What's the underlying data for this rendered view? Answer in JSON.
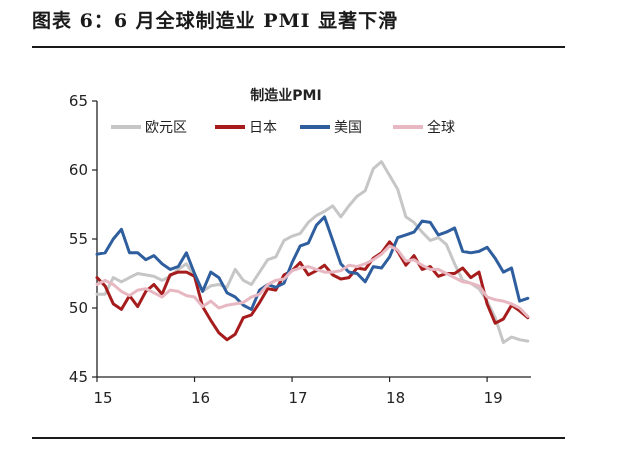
{
  "figure_title": "图表 6：6 月全球制造业 PMI 显著下滑",
  "chart_data": {
    "type": "line",
    "title": "制造业PMI",
    "xlabel": "",
    "ylabel": "",
    "x_ticks": [
      "15",
      "16",
      "17",
      "18",
      "19"
    ],
    "xlim": [
      2015.0,
      2019.45
    ],
    "ylim": [
      45,
      65
    ],
    "y_ticks": [
      45,
      50,
      55,
      60,
      65
    ],
    "grid": false,
    "legend": "top",
    "colors": {
      "欧元区": "#c6c6c6",
      "日本": "#a61c1c",
      "美国": "#2e5e9e",
      "全球": "#e7b8c2"
    },
    "series": [
      {
        "name": "欧元区",
        "x": [
          2015.0,
          2015.083,
          2015.167,
          2015.25,
          2015.333,
          2015.417,
          2015.5,
          2015.583,
          2015.667,
          2015.75,
          2015.833,
          2015.917,
          2016.0,
          2016.083,
          2016.167,
          2016.25,
          2016.333,
          2016.417,
          2016.5,
          2016.583,
          2016.667,
          2016.75,
          2016.833,
          2016.917,
          2017.0,
          2017.083,
          2017.167,
          2017.25,
          2017.333,
          2017.417,
          2017.5,
          2017.583,
          2017.667,
          2017.75,
          2017.833,
          2017.917,
          2018.0,
          2018.083,
          2018.167,
          2018.25,
          2018.333,
          2018.417,
          2018.5,
          2018.583,
          2018.667,
          2018.75,
          2018.833,
          2018.917,
          2019.0,
          2019.083,
          2019.167,
          2019.25,
          2019.333,
          2019.417
        ],
        "values": [
          51.0,
          51.0,
          52.2,
          51.9,
          52.2,
          52.5,
          52.4,
          52.3,
          52.0,
          52.3,
          52.8,
          53.2,
          52.3,
          51.2,
          51.6,
          51.7,
          51.5,
          52.8,
          52.0,
          51.7,
          52.6,
          53.5,
          53.7,
          54.9,
          55.2,
          55.4,
          56.2,
          56.7,
          57.0,
          57.4,
          56.6,
          57.4,
          58.1,
          58.5,
          60.1,
          60.6,
          59.6,
          58.6,
          56.6,
          56.2,
          55.5,
          54.9,
          55.1,
          54.6,
          53.2,
          52.0,
          51.8,
          51.4,
          50.5,
          49.3,
          47.5,
          47.9,
          47.7,
          47.6
        ]
      },
      {
        "name": "日本",
        "x": [
          2015.0,
          2015.083,
          2015.167,
          2015.25,
          2015.333,
          2015.417,
          2015.5,
          2015.583,
          2015.667,
          2015.75,
          2015.833,
          2015.917,
          2016.0,
          2016.083,
          2016.167,
          2016.25,
          2016.333,
          2016.417,
          2016.5,
          2016.583,
          2016.667,
          2016.75,
          2016.833,
          2016.917,
          2017.0,
          2017.083,
          2017.167,
          2017.25,
          2017.333,
          2017.417,
          2017.5,
          2017.583,
          2017.667,
          2017.75,
          2017.833,
          2017.917,
          2018.0,
          2018.083,
          2018.167,
          2018.25,
          2018.333,
          2018.417,
          2018.5,
          2018.583,
          2018.667,
          2018.75,
          2018.833,
          2018.917,
          2019.0,
          2019.083,
          2019.167,
          2019.25,
          2019.333,
          2019.417
        ],
        "values": [
          52.2,
          51.6,
          50.3,
          49.9,
          50.9,
          50.1,
          51.2,
          51.7,
          51.0,
          52.4,
          52.6,
          52.6,
          52.3,
          50.1,
          49.1,
          48.2,
          47.7,
          48.1,
          49.3,
          49.5,
          50.4,
          51.4,
          51.3,
          52.4,
          52.7,
          53.3,
          52.4,
          52.7,
          53.1,
          52.4,
          52.1,
          52.2,
          52.9,
          52.8,
          53.6,
          54.0,
          54.8,
          54.1,
          53.1,
          53.8,
          52.8,
          53.0,
          52.3,
          52.5,
          52.5,
          52.9,
          52.2,
          52.6,
          50.3,
          48.9,
          49.2,
          50.2,
          49.8,
          49.3
        ]
      },
      {
        "name": "美国",
        "x": [
          2015.0,
          2015.083,
          2015.167,
          2015.25,
          2015.333,
          2015.417,
          2015.5,
          2015.583,
          2015.667,
          2015.75,
          2015.833,
          2015.917,
          2016.0,
          2016.083,
          2016.167,
          2016.25,
          2016.333,
          2016.417,
          2016.5,
          2016.583,
          2016.667,
          2016.75,
          2016.833,
          2016.917,
          2017.0,
          2017.083,
          2017.167,
          2017.25,
          2017.333,
          2017.417,
          2017.5,
          2017.583,
          2017.667,
          2017.75,
          2017.833,
          2017.917,
          2018.0,
          2018.083,
          2018.167,
          2018.25,
          2018.333,
          2018.417,
          2018.5,
          2018.583,
          2018.667,
          2018.75,
          2018.833,
          2018.917,
          2019.0,
          2019.083,
          2019.167,
          2019.25,
          2019.333,
          2019.417
        ],
        "values": [
          53.9,
          54.0,
          55.0,
          55.7,
          54.0,
          54.0,
          53.5,
          53.8,
          53.2,
          52.8,
          53.0,
          54.0,
          52.5,
          51.2,
          52.6,
          52.2,
          51.1,
          50.8,
          50.2,
          49.9,
          51.3,
          51.7,
          51.5,
          51.8,
          53.3,
          54.5,
          54.7,
          56.0,
          56.6,
          54.9,
          53.2,
          52.6,
          52.5,
          51.9,
          53.0,
          52.9,
          53.7,
          55.1,
          55.3,
          55.5,
          56.3,
          56.2,
          55.3,
          55.5,
          55.8,
          54.1,
          54.0,
          54.1,
          54.4,
          53.6,
          52.6,
          52.9,
          50.5,
          50.7
        ]
      },
      {
        "name": "全球",
        "x": [
          2015.0,
          2015.083,
          2015.167,
          2015.25,
          2015.333,
          2015.417,
          2015.5,
          2015.583,
          2015.667,
          2015.75,
          2015.833,
          2015.917,
          2016.0,
          2016.083,
          2016.167,
          2016.25,
          2016.333,
          2016.417,
          2016.5,
          2016.583,
          2016.667,
          2016.75,
          2016.833,
          2016.917,
          2017.0,
          2017.083,
          2017.167,
          2017.25,
          2017.333,
          2017.417,
          2017.5,
          2017.583,
          2017.667,
          2017.75,
          2017.833,
          2017.917,
          2018.0,
          2018.083,
          2018.167,
          2018.25,
          2018.333,
          2018.417,
          2018.5,
          2018.583,
          2018.667,
          2018.75,
          2018.833,
          2018.917,
          2019.0,
          2019.083,
          2019.167,
          2019.25,
          2019.333,
          2019.417
        ],
        "values": [
          51.7,
          52.0,
          51.7,
          51.2,
          50.9,
          51.3,
          51.4,
          51.1,
          50.8,
          51.3,
          51.2,
          50.9,
          50.8,
          50.1,
          50.5,
          50.0,
          50.2,
          50.3,
          50.4,
          50.8,
          51.0,
          51.7,
          52.0,
          52.1,
          52.7,
          52.9,
          53.0,
          52.8,
          52.6,
          52.6,
          52.7,
          53.1,
          53.0,
          53.2,
          53.5,
          53.9,
          54.5,
          54.2,
          53.4,
          53.5,
          53.1,
          52.8,
          52.8,
          52.5,
          52.2,
          51.9,
          51.8,
          51.6,
          50.8,
          50.6,
          50.5,
          50.3,
          50.0,
          49.4
        ]
      }
    ]
  }
}
